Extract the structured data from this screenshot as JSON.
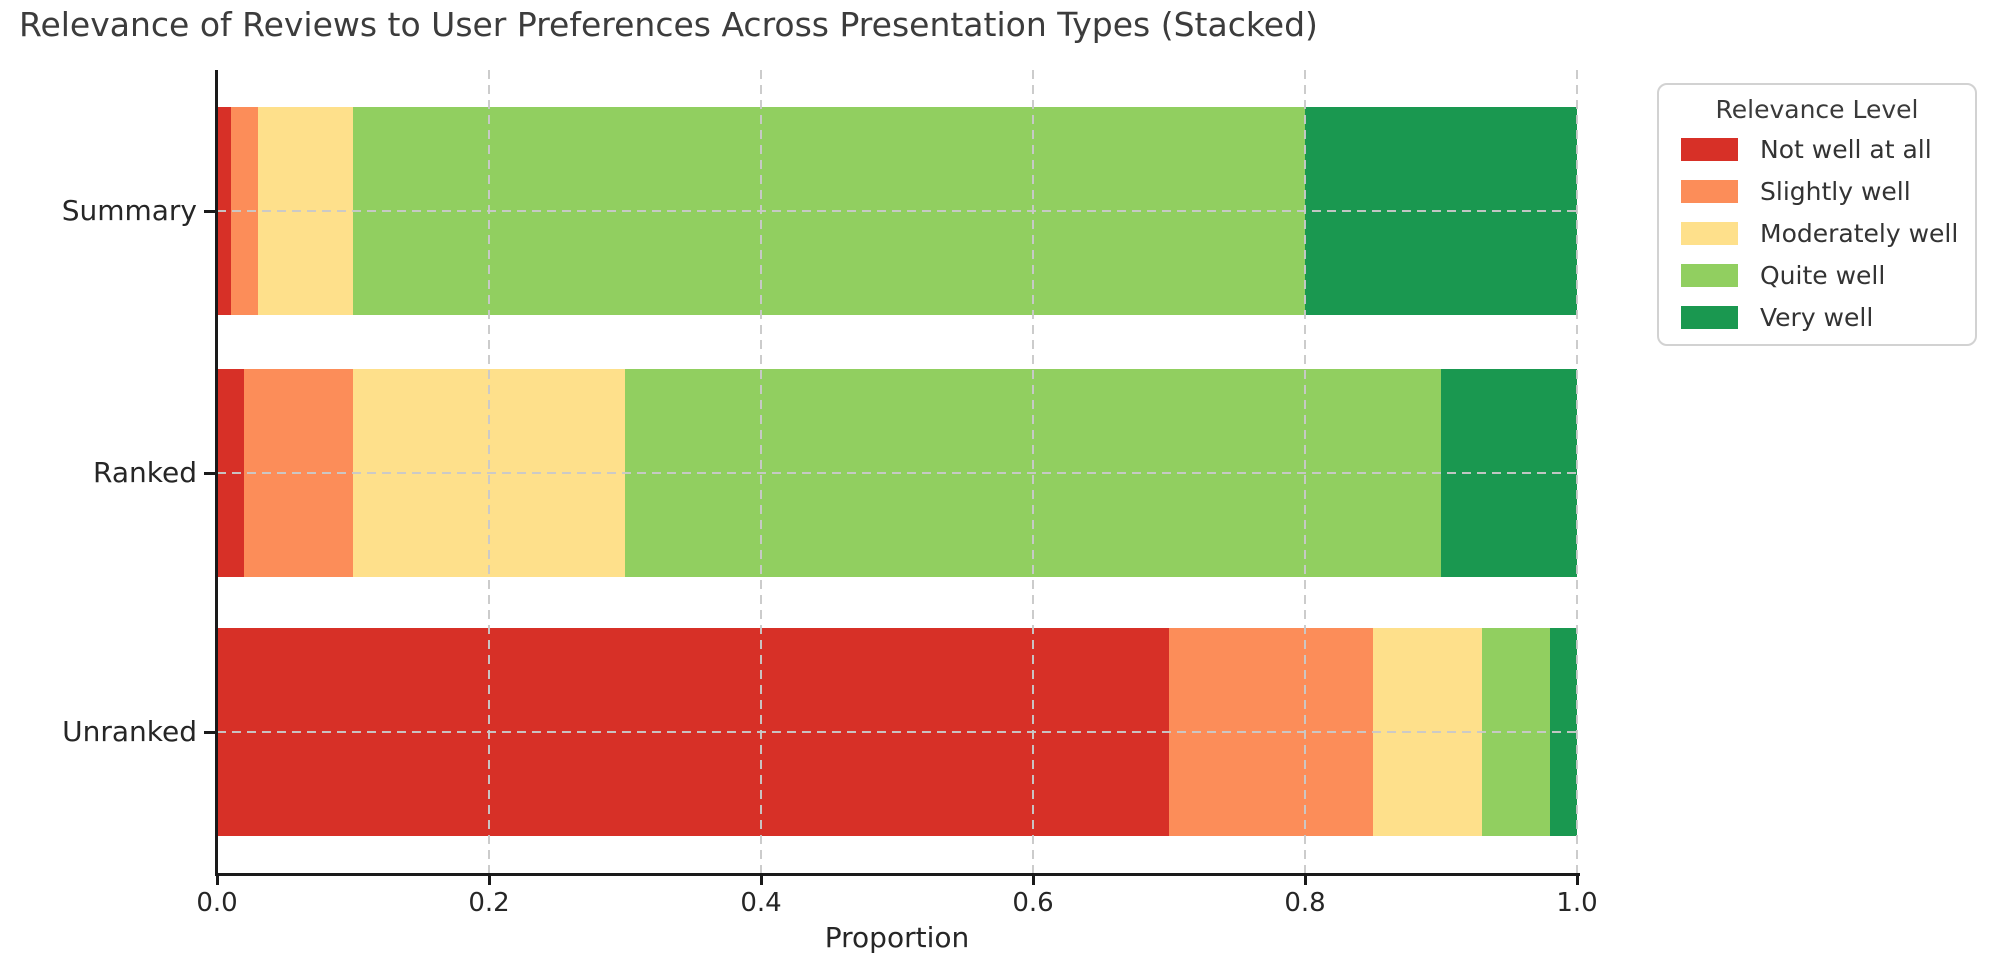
{
  "chart_data": {
    "type": "bar",
    "orientation": "horizontal",
    "stacked": true,
    "title": "Relevance of Reviews to User Preferences Across Presentation Types (Stacked)",
    "xlabel": "Proportion",
    "ylabel": "",
    "categories": [
      "Summary",
      "Ranked",
      "Unranked"
    ],
    "series": [
      {
        "name": "Not well at all",
        "color": "#d73027",
        "values": [
          0.01,
          0.02,
          0.7
        ]
      },
      {
        "name": "Slightly well",
        "color": "#fc8d59",
        "values": [
          0.02,
          0.08,
          0.15
        ]
      },
      {
        "name": "Moderately well",
        "color": "#fee08b",
        "values": [
          0.07,
          0.2,
          0.08
        ]
      },
      {
        "name": "Quite well",
        "color": "#91cf60",
        "values": [
          0.7,
          0.6,
          0.05
        ]
      },
      {
        "name": "Very well",
        "color": "#1a9850",
        "values": [
          0.2,
          0.1,
          0.02
        ]
      }
    ],
    "xlim": [
      0.0,
      1.0
    ],
    "xticks": [
      {
        "value": 0.0,
        "label": "0.0"
      },
      {
        "value": 0.2,
        "label": "0.2"
      },
      {
        "value": 0.4,
        "label": "0.4"
      },
      {
        "value": 0.6,
        "label": "0.6"
      },
      {
        "value": 0.8,
        "label": "0.8"
      },
      {
        "value": 1.0,
        "label": "1.0"
      }
    ],
    "grid": "dashed",
    "legend_title": "Relevance Level",
    "legend_position": "outside upper right"
  },
  "colors": {
    "grid": "#c9c9c9",
    "axis": "#1a1a1a",
    "title_text": "#3c3c3c",
    "tick_text": "#262626",
    "legend_border": "#d2d2d2"
  }
}
